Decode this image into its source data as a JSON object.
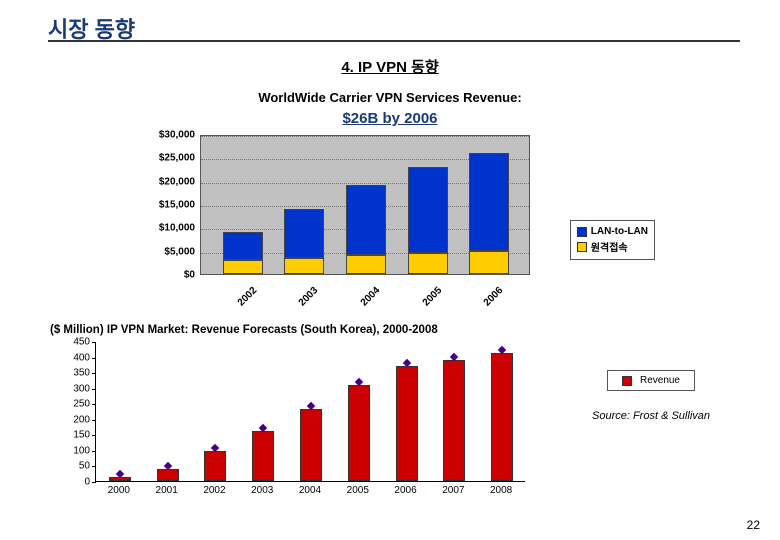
{
  "page": {
    "title": "시장 동향",
    "section_title": "4. IP VPN 동향",
    "page_number": "22"
  },
  "chart1": {
    "type": "stacked-bar-3d",
    "title_line1": "WorldWide Carrier VPN Services Revenue:",
    "title_line2": "$26B by 2006",
    "categories": [
      "2002",
      "2003",
      "2004",
      "2005",
      "2006"
    ],
    "series_bottom": {
      "name": "원격접속",
      "color": "#ffcc00",
      "values": [
        3000,
        3500,
        4000,
        4500,
        5000
      ]
    },
    "series_top": {
      "name": "LAN-to-LAN",
      "color": "#0033cc",
      "values": [
        6000,
        10500,
        15000,
        18500,
        21000
      ]
    },
    "yticks": [
      "$0",
      "$5,000",
      "$10,000",
      "$15,000",
      "$20,000",
      "$25,000",
      "$30,000"
    ],
    "ylim": [
      0,
      30000
    ],
    "plot_bg": "#c0c0c0",
    "legend_labels": [
      "LAN-to-LAN",
      "원격접속"
    ]
  },
  "chart2": {
    "type": "bar",
    "unit_label": "($ Million)",
    "title": "IP VPN Market: Revenue Forecasts (South Korea), 2000-2008",
    "categories": [
      "2000",
      "2001",
      "2002",
      "2003",
      "2004",
      "2005",
      "2006",
      "2007",
      "2008"
    ],
    "values": [
      12,
      40,
      95,
      160,
      230,
      310,
      370,
      390,
      410
    ],
    "bar_color": "#cc0000",
    "marker_color": "#4a0080",
    "ylim": [
      0,
      450
    ],
    "ytick_step": 50,
    "yticks": [
      "0",
      "50",
      "100",
      "150",
      "200",
      "250",
      "300",
      "350",
      "400",
      "450"
    ],
    "legend_label": "Revenue",
    "source_text": "Source: Frost & Sullivan"
  }
}
